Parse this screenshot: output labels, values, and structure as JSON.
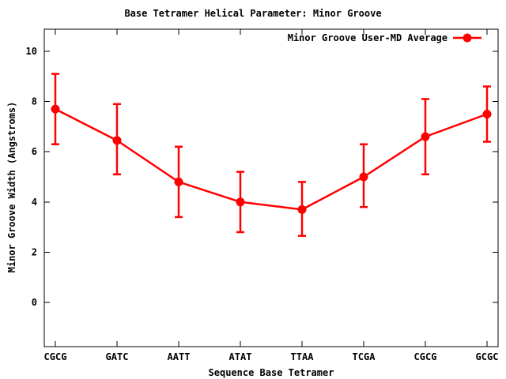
{
  "colors": {
    "series": "#ff0000",
    "axis": "#000000",
    "background": "#ffffff"
  },
  "chart_data": {
    "type": "line",
    "title": "Base Tetramer Helical Parameter: Minor Groove",
    "xlabel": "Sequence Base Tetramer",
    "ylabel": "Minor Groove Width (Angstroms)",
    "categories": [
      "CGCG",
      "GATC",
      "AATT",
      "ATAT",
      "TTAA",
      "TCGA",
      "CGCG",
      "GCGC"
    ],
    "series": [
      {
        "name": "Minor Groove User-MD Average",
        "color": "#ff0000",
        "marker": "filled-circle",
        "values": [
          7.7,
          6.45,
          4.8,
          4.0,
          3.7,
          5.0,
          6.6,
          7.5
        ],
        "error_low": [
          6.3,
          5.1,
          3.4,
          2.8,
          2.65,
          3.8,
          5.1,
          6.4
        ],
        "error_high": [
          9.1,
          7.9,
          6.2,
          5.2,
          4.8,
          6.3,
          8.1,
          8.6
        ]
      }
    ],
    "yticks": [
      0,
      2,
      4,
      6,
      8,
      10
    ],
    "ylim": [
      -1.76,
      10.88
    ],
    "grid": false,
    "error_bars": true,
    "legend_position": "top-right-inside"
  }
}
